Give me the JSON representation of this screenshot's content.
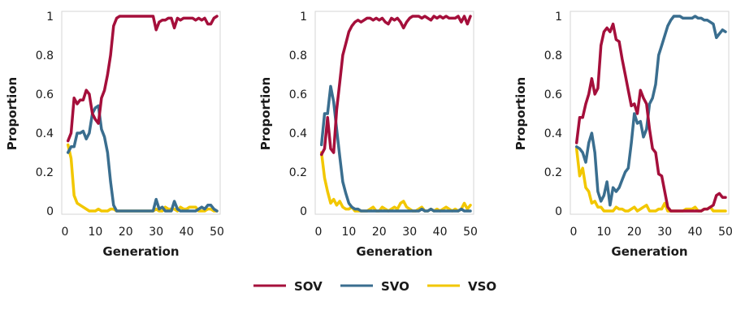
{
  "legend": {
    "position": "bottom-center",
    "items": [
      "SOV",
      "SVO",
      "VSO"
    ]
  },
  "colors": {
    "SOV": "#a50f3b",
    "SVO": "#3a6e8f",
    "VSO": "#f2c700"
  },
  "chart_data": [
    {
      "type": "line",
      "xlabel": "Generation",
      "ylabel": "Proportion",
      "xlim": [
        0,
        50
      ],
      "ylim": [
        0,
        1
      ],
      "xticks": [
        "0",
        "10",
        "20",
        "30",
        "40",
        "50"
      ],
      "yticks": [
        "0",
        "0.2",
        "0.4",
        "0.6",
        "0.8",
        "1"
      ],
      "grid": false,
      "x": [
        1,
        2,
        3,
        4,
        5,
        6,
        7,
        8,
        9,
        10,
        11,
        12,
        13,
        14,
        15,
        16,
        17,
        18,
        19,
        20,
        21,
        22,
        23,
        24,
        25,
        26,
        27,
        28,
        29,
        30,
        31,
        32,
        33,
        34,
        35,
        36,
        37,
        38,
        39,
        40,
        41,
        42,
        43,
        44,
        45,
        46,
        47,
        48,
        49,
        50
      ],
      "series": [
        {
          "name": "SOV",
          "values": [
            0.36,
            0.4,
            0.58,
            0.55,
            0.57,
            0.57,
            0.62,
            0.6,
            0.5,
            0.47,
            0.45,
            0.58,
            0.62,
            0.7,
            0.8,
            0.95,
            0.99,
            1.0,
            1.0,
            1.0,
            1.0,
            1.0,
            1.0,
            1.0,
            1.0,
            1.0,
            1.0,
            1.0,
            1.0,
            0.93,
            0.97,
            0.98,
            0.98,
            0.99,
            0.99,
            0.94,
            0.99,
            0.98,
            0.99,
            0.99,
            0.99,
            0.99,
            0.98,
            0.99,
            0.98,
            0.99,
            0.96,
            0.96,
            0.99,
            1.0
          ]
        },
        {
          "name": "SVO",
          "values": [
            0.3,
            0.33,
            0.33,
            0.4,
            0.4,
            0.41,
            0.37,
            0.4,
            0.5,
            0.53,
            0.54,
            0.42,
            0.38,
            0.3,
            0.15,
            0.03,
            0.0,
            0.0,
            0.0,
            0.0,
            0.0,
            0.0,
            0.0,
            0.0,
            0.0,
            0.0,
            0.0,
            0.0,
            0.0,
            0.06,
            0.01,
            0.02,
            0.0,
            0.0,
            0.0,
            0.05,
            0.01,
            0.0,
            0.0,
            0.0,
            0.0,
            0.0,
            0.0,
            0.01,
            0.02,
            0.01,
            0.03,
            0.03,
            0.01,
            0.0
          ]
        },
        {
          "name": "VSO",
          "values": [
            0.34,
            0.27,
            0.08,
            0.04,
            0.03,
            0.02,
            0.01,
            0.0,
            0.0,
            0.0,
            0.01,
            0.0,
            0.0,
            0.0,
            0.01,
            0.01,
            0.0,
            0.0,
            0.0,
            0.0,
            0.0,
            0.0,
            0.0,
            0.0,
            0.0,
            0.0,
            0.0,
            0.0,
            0.0,
            0.01,
            0.0,
            0.0,
            0.02,
            0.01,
            0.01,
            0.01,
            0.0,
            0.02,
            0.01,
            0.01,
            0.02,
            0.02,
            0.02,
            0.0,
            0.0,
            0.0,
            0.01,
            0.01,
            0.0,
            0.0
          ]
        }
      ]
    },
    {
      "type": "line",
      "xlabel": "Generation",
      "ylabel": "Proportion",
      "xlim": [
        0,
        50
      ],
      "ylim": [
        0,
        1
      ],
      "xticks": [
        "0",
        "10",
        "20",
        "30",
        "40",
        "50"
      ],
      "yticks": [
        "0",
        "0.2",
        "0.4",
        "0.6",
        "0.8",
        "1"
      ],
      "grid": false,
      "x": [
        1,
        2,
        3,
        4,
        5,
        6,
        7,
        8,
        9,
        10,
        11,
        12,
        13,
        14,
        15,
        16,
        17,
        18,
        19,
        20,
        21,
        22,
        23,
        24,
        25,
        26,
        27,
        28,
        29,
        30,
        31,
        32,
        33,
        34,
        35,
        36,
        37,
        38,
        39,
        40,
        41,
        42,
        43,
        44,
        45,
        46,
        47,
        48,
        49,
        50
      ],
      "series": [
        {
          "name": "SOV",
          "values": [
            0.29,
            0.32,
            0.48,
            0.32,
            0.3,
            0.52,
            0.66,
            0.8,
            0.86,
            0.92,
            0.95,
            0.97,
            0.98,
            0.97,
            0.98,
            0.99,
            0.99,
            0.98,
            0.99,
            0.98,
            0.99,
            0.97,
            0.96,
            0.99,
            0.98,
            0.99,
            0.97,
            0.94,
            0.97,
            0.99,
            1.0,
            1.0,
            1.0,
            0.99,
            1.0,
            0.99,
            0.98,
            1.0,
            0.99,
            1.0,
            0.99,
            1.0,
            0.99,
            0.99,
            0.99,
            1.0,
            0.97,
            1.0,
            0.96,
            1.0
          ]
        },
        {
          "name": "SVO",
          "values": [
            0.34,
            0.5,
            0.5,
            0.64,
            0.56,
            0.42,
            0.28,
            0.15,
            0.09,
            0.04,
            0.02,
            0.01,
            0.01,
            0.0,
            0.0,
            0.0,
            0.0,
            0.0,
            0.0,
            0.0,
            0.0,
            0.0,
            0.0,
            0.0,
            0.0,
            0.0,
            0.0,
            0.0,
            0.0,
            0.0,
            0.0,
            0.0,
            0.0,
            0.01,
            0.0,
            0.0,
            0.01,
            0.0,
            0.0,
            0.0,
            0.0,
            0.0,
            0.0,
            0.0,
            0.0,
            0.0,
            0.01,
            0.0,
            0.0,
            0.0
          ]
        },
        {
          "name": "VSO",
          "values": [
            0.3,
            0.17,
            0.1,
            0.04,
            0.06,
            0.03,
            0.05,
            0.02,
            0.01,
            0.01,
            0.02,
            0.0,
            0.0,
            0.0,
            0.0,
            0.0,
            0.01,
            0.02,
            0.0,
            0.0,
            0.02,
            0.01,
            0.0,
            0.01,
            0.02,
            0.01,
            0.04,
            0.05,
            0.02,
            0.01,
            0.0,
            0.0,
            0.01,
            0.02,
            0.0,
            0.0,
            0.01,
            0.0,
            0.01,
            0.0,
            0.01,
            0.02,
            0.01,
            0.0,
            0.01,
            0.0,
            0.01,
            0.04,
            0.01,
            0.03
          ]
        }
      ]
    },
    {
      "type": "line",
      "xlabel": "Generation",
      "ylabel": "Proportion",
      "xlim": [
        0,
        50
      ],
      "ylim": [
        0,
        1
      ],
      "xticks": [
        "0",
        "10",
        "20",
        "30",
        "40",
        "50"
      ],
      "yticks": [
        "0",
        "0.2",
        "0.4",
        "0.6",
        "0.8",
        "1"
      ],
      "grid": false,
      "x": [
        1,
        2,
        3,
        4,
        5,
        6,
        7,
        8,
        9,
        10,
        11,
        12,
        13,
        14,
        15,
        16,
        17,
        18,
        19,
        20,
        21,
        22,
        23,
        24,
        25,
        26,
        27,
        28,
        29,
        30,
        31,
        32,
        33,
        34,
        35,
        36,
        37,
        38,
        39,
        40,
        41,
        42,
        43,
        44,
        45,
        46,
        47,
        48,
        49,
        50
      ],
      "series": [
        {
          "name": "SOV",
          "values": [
            0.35,
            0.48,
            0.48,
            0.55,
            0.6,
            0.68,
            0.6,
            0.63,
            0.85,
            0.92,
            0.94,
            0.92,
            0.96,
            0.88,
            0.87,
            0.78,
            0.7,
            0.62,
            0.54,
            0.55,
            0.5,
            0.62,
            0.58,
            0.55,
            0.42,
            0.32,
            0.3,
            0.19,
            0.18,
            0.1,
            0.02,
            0.0,
            0.0,
            0.0,
            0.0,
            0.0,
            0.0,
            0.0,
            0.0,
            0.0,
            0.0,
            0.0,
            0.01,
            0.01,
            0.02,
            0.03,
            0.08,
            0.09,
            0.07,
            0.07
          ]
        },
        {
          "name": "SVO",
          "values": [
            0.33,
            0.32,
            0.3,
            0.25,
            0.35,
            0.4,
            0.3,
            0.1,
            0.05,
            0.08,
            0.15,
            0.03,
            0.12,
            0.1,
            0.12,
            0.16,
            0.2,
            0.22,
            0.35,
            0.5,
            0.45,
            0.46,
            0.38,
            0.42,
            0.55,
            0.58,
            0.65,
            0.8,
            0.85,
            0.9,
            0.95,
            0.98,
            1.0,
            1.0,
            1.0,
            0.99,
            0.99,
            0.99,
            0.99,
            1.0,
            0.99,
            0.99,
            0.98,
            0.98,
            0.97,
            0.96,
            0.89,
            0.91,
            0.93,
            0.92
          ]
        },
        {
          "name": "VSO",
          "values": [
            0.32,
            0.18,
            0.22,
            0.12,
            0.1,
            0.04,
            0.05,
            0.02,
            0.02,
            0.0,
            0.0,
            0.0,
            0.0,
            0.02,
            0.01,
            0.01,
            0.0,
            0.0,
            0.01,
            0.02,
            0.0,
            0.01,
            0.02,
            0.03,
            0.0,
            0.0,
            0.0,
            0.01,
            0.01,
            0.04,
            0.0,
            0.0,
            0.0,
            0.0,
            0.0,
            0.0,
            0.01,
            0.01,
            0.01,
            0.02,
            0.0,
            0.0,
            0.01,
            0.01,
            0.02,
            0.0,
            0.0,
            0.0,
            0.0,
            0.0
          ]
        }
      ]
    }
  ]
}
